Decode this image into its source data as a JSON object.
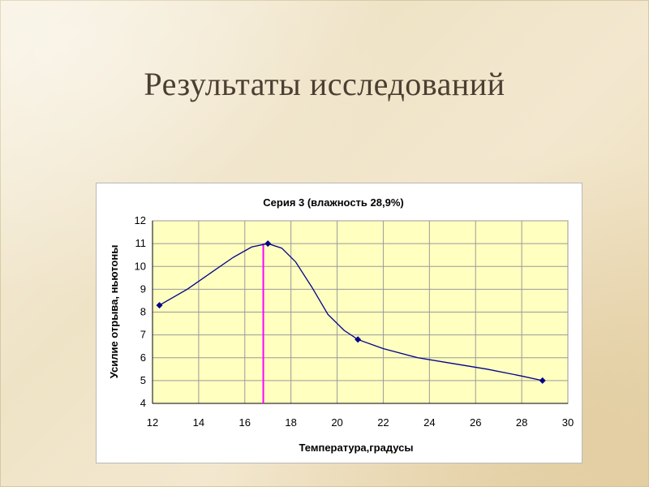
{
  "slide": {
    "title": "Результаты исследований"
  },
  "chart_data": {
    "type": "line",
    "title": "Серия 3 (влажность 28,9%)",
    "xlabel": "Температура,градусы",
    "ylabel": "Усилие отрыва, ньютоны",
    "xlim": [
      12,
      30
    ],
    "ylim": [
      4,
      12
    ],
    "xticks": [
      12,
      14,
      16,
      18,
      20,
      22,
      24,
      26,
      28,
      30
    ],
    "yticks": [
      4,
      5,
      6,
      7,
      8,
      9,
      10,
      11,
      12
    ],
    "grid": true,
    "series": [
      {
        "points": [
          [
            12.3,
            8.3
          ],
          [
            17.0,
            11.0
          ],
          [
            20.9,
            6.8
          ],
          [
            28.9,
            5.0
          ]
        ],
        "curve": [
          [
            12.3,
            8.3
          ],
          [
            13.5,
            9.0
          ],
          [
            14.5,
            9.7
          ],
          [
            15.5,
            10.4
          ],
          [
            16.3,
            10.85
          ],
          [
            17.0,
            11.0
          ],
          [
            17.6,
            10.8
          ],
          [
            18.2,
            10.2
          ],
          [
            18.9,
            9.1
          ],
          [
            19.6,
            7.9
          ],
          [
            20.3,
            7.2
          ],
          [
            20.9,
            6.8
          ],
          [
            22.0,
            6.4
          ],
          [
            23.5,
            6.0
          ],
          [
            25.0,
            5.75
          ],
          [
            26.5,
            5.5
          ],
          [
            28.0,
            5.2
          ],
          [
            28.9,
            5.0
          ]
        ],
        "color": "#00008b",
        "marker": "diamond"
      }
    ],
    "vertical_marker": {
      "x": 16.8,
      "color": "#ff00ff"
    },
    "plot_background": "#ffffc0"
  }
}
